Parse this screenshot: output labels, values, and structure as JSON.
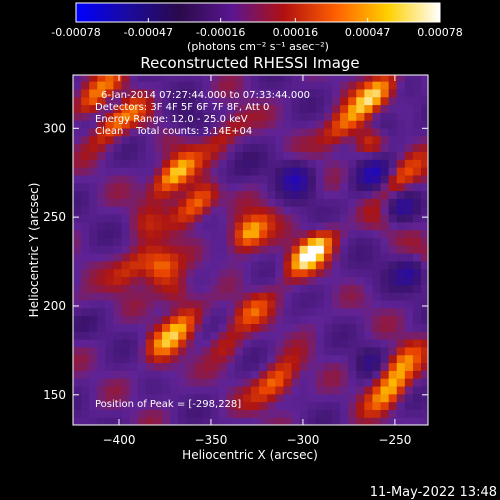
{
  "colorbar": {
    "tick_labels": [
      "-0.00078",
      "-0.00047",
      "-0.00016",
      "0.00016",
      "0.00047",
      "0.00078"
    ],
    "tick_values": [
      -0.00078,
      -0.00047,
      -0.00016,
      0.00016,
      0.00047,
      0.00078
    ],
    "range": [
      -0.00078,
      0.00078
    ],
    "units": "(photons cm⁻² s⁻¹ asec⁻²)",
    "colors": [
      "#0000ff",
      "#1b0a9e",
      "#2a0a4a",
      "#5a1690",
      "#b01010",
      "#ff6000",
      "#ffd000",
      "#ffffff"
    ]
  },
  "chart_data": {
    "type": "heatmap",
    "title": "Reconstructed RHESSI Image",
    "xlabel": "Heliocentric X (arcsec)",
    "ylabel": "Heliocentric Y (arcsec)",
    "xlim": [
      -425,
      -232
    ],
    "ylim": [
      133,
      330
    ],
    "x_ticks": [
      -400,
      -350,
      -300,
      -250
    ],
    "x_tick_labels": [
      "−400",
      "−350",
      "−300",
      "−250"
    ],
    "y_ticks": [
      150,
      200,
      250,
      300
    ],
    "y_tick_labels": [
      "150",
      "200",
      "250",
      "300"
    ],
    "annotations": [
      "6-Jan-2014 07:27:44.000 to 07:33:44.000",
      "Detectors: 3F 4F 5F 6F 7F 8F, Att 0",
      "Energy Range: 12.0 - 25.0 keV",
      "Clean    Total counts: 3.14E+04"
    ],
    "peak_label": "Position of Peak = [-298,228]",
    "peak_position": [
      -298,
      228
    ],
    "bright_sources": [
      {
        "x": -298,
        "y": 228,
        "intensity": 1.0
      },
      {
        "x": -372,
        "y": 272,
        "intensity": 0.9
      },
      {
        "x": -360,
        "y": 255,
        "intensity": 0.7
      },
      {
        "x": -412,
        "y": 318,
        "intensity": 0.85
      },
      {
        "x": -405,
        "y": 300,
        "intensity": 0.55
      },
      {
        "x": -280,
        "y": 300,
        "intensity": 0.6
      },
      {
        "x": -262,
        "y": 318,
        "intensity": 0.75
      },
      {
        "x": -250,
        "y": 270,
        "intensity": 0.55
      },
      {
        "x": -370,
        "y": 185,
        "intensity": 0.6
      },
      {
        "x": -330,
        "y": 195,
        "intensity": 0.45
      },
      {
        "x": -318,
        "y": 155,
        "intensity": 0.55
      },
      {
        "x": -255,
        "y": 150,
        "intensity": 0.6
      },
      {
        "x": -250,
        "y": 165,
        "intensity": 0.55
      },
      {
        "x": -345,
        "y": 295,
        "intensity": 0.4
      },
      {
        "x": -330,
        "y": 240,
        "intensity": 0.5
      },
      {
        "x": -395,
        "y": 220,
        "intensity": 0.45
      }
    ]
  },
  "footer": {
    "timestamp": "11-May-2022 13:48"
  }
}
